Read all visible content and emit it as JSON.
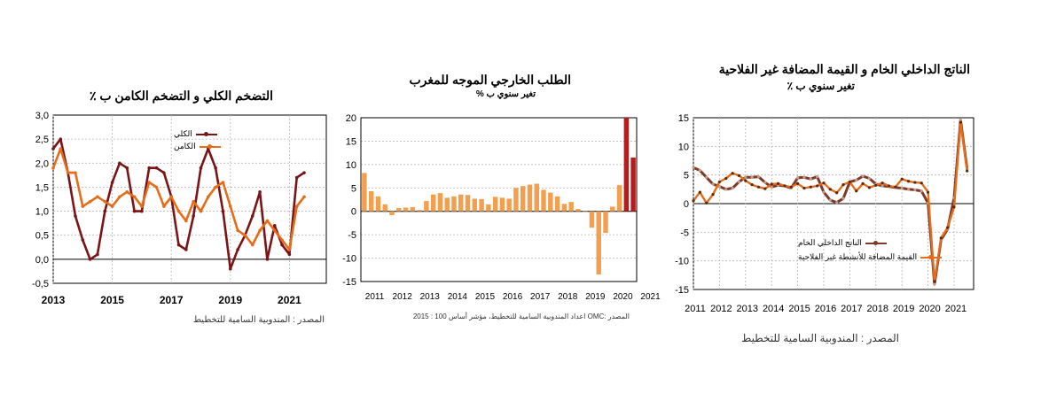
{
  "panels": [
    {
      "title": "التضخم الكلي و التضخم الكامن ب ٪",
      "subtitle": "",
      "source": "المصدر : المندوبية السامية للتخطيط",
      "legend": [
        "الكلي",
        "الكامن"
      ]
    },
    {
      "title": "الطلب الخارجي الموجه للمغرب",
      "subtitle": "تغير سنوي ب %",
      "source": "المصدر :OMC اعداد المندوبية السامية للتخطيط، مؤشر أساس 100 : 2015",
      "legend": []
    },
    {
      "title": "الناتج الداخلي الخام و القيمة المضافة غير الفلاحية",
      "subtitle": "تغير سنوي ب ٪",
      "source": "المصدر : المندوبية السامية للتخطيط",
      "legend": [
        "الناتج الداخلي الخام",
        "القيمة المضافة للأنشطة غير الفلاحية"
      ]
    }
  ],
  "chart_data": [
    {
      "type": "line",
      "title": "التضخم الكلي و التضخم الكامن ب ٪",
      "ylim": [
        -0.5,
        3.0
      ],
      "yticks": [
        "3,0",
        "2,5",
        "2,0",
        "1,5",
        "1,0",
        "0,5",
        "0,0",
        "-0,5"
      ],
      "ytick_values": [
        3.0,
        2.5,
        2.0,
        1.5,
        1.0,
        0.5,
        0.0,
        -0.5
      ],
      "xlim": [
        2013,
        2022.25
      ],
      "xticks": [
        "2013",
        "2015",
        "2017",
        "2019",
        "2021"
      ],
      "xtick_values": [
        2013,
        2015,
        2017,
        2019,
        2021
      ],
      "colors": {
        "headline": "#7b1416",
        "core": "#e66c1a"
      },
      "series": [
        {
          "name": "الكلي",
          "x": [
            2013.0,
            2013.25,
            2013.5,
            2013.75,
            2014.0,
            2014.25,
            2014.5,
            2014.75,
            2015.0,
            2015.25,
            2015.5,
            2015.75,
            2016.0,
            2016.25,
            2016.5,
            2016.75,
            2017.0,
            2017.25,
            2017.5,
            2017.75,
            2018.0,
            2018.25,
            2018.5,
            2018.75,
            2019.0,
            2019.25,
            2019.5,
            2019.75,
            2020.0,
            2020.25,
            2020.5,
            2020.75,
            2021.0,
            2021.25,
            2021.5
          ],
          "values": [
            2.3,
            2.5,
            1.8,
            0.9,
            0.4,
            0.0,
            0.1,
            1.0,
            1.6,
            2.0,
            1.9,
            1.0,
            1.0,
            1.9,
            1.9,
            1.8,
            1.3,
            0.3,
            0.2,
            0.9,
            1.9,
            2.3,
            1.9,
            1.0,
            -0.2,
            0.2,
            0.5,
            0.9,
            1.4,
            0.0,
            0.7,
            0.3,
            0.1,
            1.7,
            1.8
          ]
        },
        {
          "name": "الكامن",
          "x": [
            2013.0,
            2013.25,
            2013.5,
            2013.75,
            2014.0,
            2014.25,
            2014.5,
            2014.75,
            2015.0,
            2015.25,
            2015.5,
            2015.75,
            2016.0,
            2016.25,
            2016.5,
            2016.75,
            2017.0,
            2017.25,
            2017.5,
            2017.75,
            2018.0,
            2018.25,
            2018.5,
            2018.75,
            2019.0,
            2019.25,
            2019.5,
            2019.75,
            2020.0,
            2020.25,
            2020.5,
            2020.75,
            2021.0,
            2021.25,
            2021.5
          ],
          "values": [
            1.9,
            2.3,
            1.8,
            1.8,
            1.1,
            1.2,
            1.3,
            1.2,
            1.1,
            1.3,
            1.4,
            1.3,
            1.1,
            1.6,
            1.5,
            1.1,
            1.3,
            1.0,
            0.8,
            1.2,
            1.0,
            1.3,
            1.5,
            1.6,
            1.1,
            0.6,
            0.5,
            0.3,
            0.6,
            0.8,
            0.6,
            0.4,
            0.2,
            1.1,
            1.3
          ]
        }
      ]
    },
    {
      "type": "bar",
      "title": "الطلب الخارجي الموجه للمغرب",
      "subtitle": "تغير سنوي ب %",
      "ylim": [
        -15,
        20
      ],
      "yticks": [
        "20",
        "15",
        "10",
        "5",
        "0",
        "-5",
        "-10",
        "-15"
      ],
      "ytick_values": [
        20,
        15,
        10,
        5,
        0,
        -5,
        -10,
        -15
      ],
      "xticks": [
        "2011",
        "2012",
        "2013",
        "2014",
        "2015",
        "2016",
        "2017",
        "2018",
        "2019",
        "2020",
        "2021"
      ],
      "colors": {
        "bar": "#f2a050",
        "highlight": "#b51d1d"
      },
      "series": [
        {
          "name": "",
          "values": [
            8.2,
            4.3,
            3.2,
            1.5,
            -0.8,
            0.7,
            0.8,
            0.9,
            0.3,
            2.2,
            3.6,
            3.9,
            2.9,
            3.2,
            3.6,
            3.5,
            2.7,
            2.6,
            1.5,
            3.1,
            2.9,
            2.7,
            5.0,
            5.4,
            5.7,
            5.9,
            4.6,
            4.0,
            3.2,
            1.6,
            2.0,
            0.5,
            0.0,
            -3.5,
            -13.5,
            -4.6,
            1.0,
            5.6,
            20.0,
            11.5
          ]
        }
      ],
      "highlight_indices": [
        38,
        39
      ]
    },
    {
      "type": "line",
      "title": "الناتج الداخلي الخام و القيمة المضافة غير الفلاحية",
      "subtitle": "تغير سنوي ب ٪",
      "ylim": [
        -15,
        15
      ],
      "yticks": [
        "15",
        "10",
        "5",
        "0",
        "-5",
        "-10",
        "-15"
      ],
      "ytick_values": [
        15,
        10,
        5,
        0,
        -5,
        -10,
        -15
      ],
      "xlim": [
        2011,
        2021.75
      ],
      "xticks": [
        "2011",
        "2012",
        "2013",
        "2014",
        "2015",
        "2016",
        "2017",
        "2018",
        "2019",
        "2020",
        "2021"
      ],
      "xtick_values": [
        2011,
        2012,
        2013,
        2014,
        2015,
        2016,
        2017,
        2018,
        2019,
        2020,
        2021
      ],
      "colors": {
        "gdp": "#7b3a2a",
        "nonagri": "#e66c1a"
      },
      "series": [
        {
          "name": "الناتج الداخلي الخام",
          "x": [
            2011.0,
            2011.25,
            2011.5,
            2011.75,
            2012.0,
            2012.25,
            2012.5,
            2012.75,
            2013.0,
            2013.25,
            2013.5,
            2013.75,
            2014.0,
            2014.25,
            2014.5,
            2014.75,
            2015.0,
            2015.25,
            2015.5,
            2015.75,
            2016.0,
            2016.25,
            2016.5,
            2016.75,
            2017.0,
            2017.25,
            2017.5,
            2017.75,
            2018.0,
            2018.25,
            2018.5,
            2018.75,
            2019.0,
            2019.25,
            2019.5,
            2019.75,
            2020.0,
            2020.25,
            2020.5,
            2020.75,
            2021.0,
            2021.25,
            2021.5
          ],
          "values": [
            6.3,
            5.8,
            4.6,
            3.4,
            3.0,
            2.5,
            2.7,
            3.8,
            4.6,
            4.6,
            4.7,
            3.7,
            2.9,
            3.2,
            3.1,
            2.7,
            4.5,
            4.6,
            4.3,
            4.7,
            2.0,
            0.6,
            0.2,
            0.9,
            3.8,
            4.1,
            4.8,
            4.4,
            3.4,
            3.1,
            3.0,
            2.8,
            2.7,
            2.5,
            2.4,
            2.2,
            0.1,
            -14.1,
            -6.3,
            -4.5,
            1.0,
            14.6,
            6.0
          ]
        },
        {
          "name": "القيمة المضافة للأنشطة غير الفلاحية",
          "x": [
            2011.0,
            2011.25,
            2011.5,
            2011.75,
            2012.0,
            2012.25,
            2012.5,
            2012.75,
            2013.0,
            2013.25,
            2013.5,
            2013.75,
            2014.0,
            2014.25,
            2014.5,
            2014.75,
            2015.0,
            2015.25,
            2015.5,
            2015.75,
            2016.0,
            2016.25,
            2016.5,
            2016.75,
            2017.0,
            2017.25,
            2017.5,
            2017.75,
            2018.0,
            2018.25,
            2018.5,
            2018.75,
            2019.0,
            2019.25,
            2019.5,
            2019.75,
            2020.0,
            2020.25,
            2020.5,
            2020.75,
            2021.0,
            2021.25,
            2021.5
          ],
          "values": [
            0.5,
            2.0,
            0.1,
            1.6,
            3.8,
            4.4,
            5.3,
            4.9,
            4.0,
            3.3,
            2.9,
            2.6,
            3.4,
            3.5,
            3.1,
            2.9,
            3.5,
            2.7,
            2.9,
            3.1,
            3.6,
            2.5,
            1.9,
            3.3,
            3.8,
            2.2,
            3.5,
            2.8,
            3.2,
            3.6,
            3.1,
            2.9,
            4.3,
            3.9,
            3.7,
            3.6,
            2.0,
            -13.6,
            -6.0,
            -4.2,
            -0.6,
            14.2,
            5.7
          ]
        }
      ]
    }
  ]
}
